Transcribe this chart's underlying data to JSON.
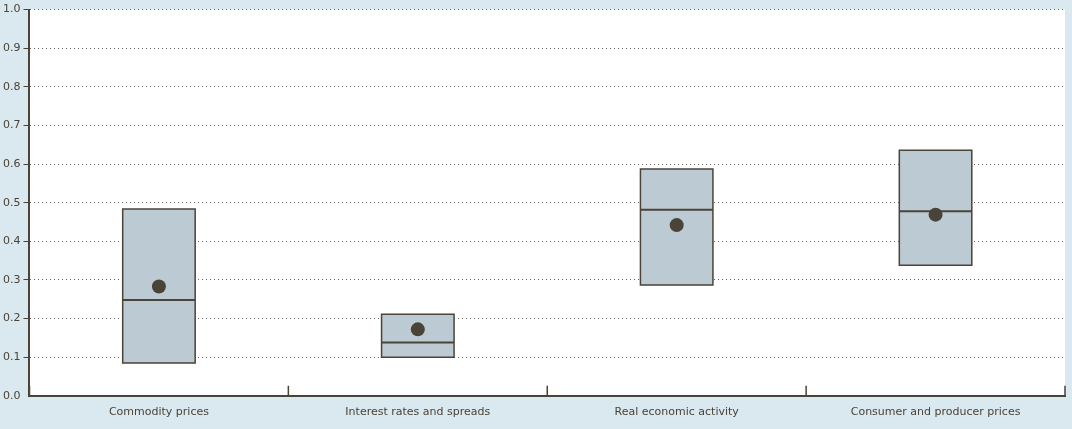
{
  "chart_data": {
    "type": "box",
    "categories": [
      "Commodity prices",
      "Interest rates and spreads",
      "Real economic activity",
      "Consumer and producer prices"
    ],
    "series": [
      {
        "color": "#bccbd3",
        "boxes": [
          {
            "low": 0.085,
            "q1": 0.085,
            "median": 0.248,
            "q3": 0.484,
            "high": 0.484,
            "mean": 0.283
          },
          {
            "low": 0.1,
            "q1": 0.1,
            "median": 0.138,
            "q3": 0.211,
            "high": 0.211,
            "mean": 0.172
          },
          {
            "low": 0.287,
            "q1": 0.287,
            "median": 0.482,
            "q3": 0.587,
            "high": 0.587,
            "mean": 0.442
          },
          {
            "low": 0.338,
            "q1": 0.338,
            "median": 0.478,
            "q3": 0.636,
            "high": 0.636,
            "mean": 0.469
          }
        ]
      }
    ],
    "ylim": [
      0,
      1
    ],
    "yticks": [
      {
        "value": 0,
        "label": "0.0"
      },
      0.1,
      0.2,
      0.3,
      0.4,
      0.5,
      0.6,
      0.7,
      0.8,
      0.9,
      {
        "value": 1,
        "label": "1.0"
      }
    ],
    "grid": "y",
    "legend": false,
    "marker": "circle"
  }
}
